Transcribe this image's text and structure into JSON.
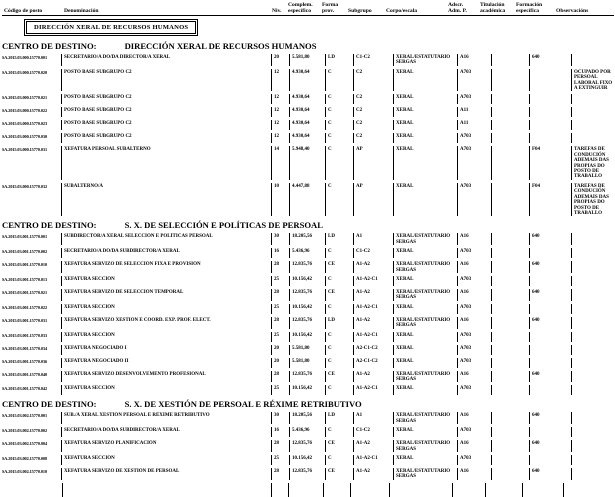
{
  "header": {
    "columns": [
      {
        "top": "",
        "bottom": "Código de posto"
      },
      {
        "top": "",
        "bottom": "Denominación"
      },
      {
        "top": "",
        "bottom": "Niv."
      },
      {
        "top": "Complem.",
        "bottom": "específico"
      },
      {
        "top": "Forma",
        "bottom": "prov."
      },
      {
        "top": "",
        "bottom": "Subgrupo"
      },
      {
        "top": "",
        "bottom": "Corpo/escala"
      },
      {
        "top": "Adscr.",
        "bottom": "Adm. P."
      },
      {
        "top": "Titulación",
        "bottom": "académica"
      },
      {
        "top": "Formación",
        "bottom": "específica"
      },
      {
        "top": "",
        "bottom": "Observacións"
      }
    ]
  },
  "org_box": "DIRECCIÓN XERAL DE RECURSOS HUMANOS",
  "sections": [
    {
      "centro_label": "CENTRO DE DESTINO:",
      "name": "DIRECCIÓN XERAL DE RECURSOS HUMANOS",
      "rows": [
        {
          "code": "SA.2015.03.000.15770.001",
          "den": "SECRETARIO/A DO/DA DIRECTOR/A XERAL",
          "niv": "20",
          "comp": "5.581,80",
          "forma": "LD",
          "sub": "C1-C2",
          "corpo": "XERAL/ESTATUTARIO SERGAS",
          "adscr": "A16",
          "tit": "",
          "form": "640",
          "obs": ""
        },
        {
          "code": "SA.2015.03.000.15770.020",
          "den": "POSTO BASE SUBGRUPO C2",
          "niv": "12",
          "comp": "4.930,64",
          "forma": "C",
          "sub": "C2",
          "corpo": "XERAL",
          "adscr": "A703",
          "tit": "",
          "form": "",
          "obs": "OCUPADO POR PERSOAL LABORAL FIXO A EXTINGUIR"
        },
        {
          "code": "SA.2015.03.000.15770.021",
          "den": "POSTO BASE SUBGRUPO C2",
          "niv": "12",
          "comp": "4.930,64",
          "forma": "C",
          "sub": "C2",
          "corpo": "XERAL",
          "adscr": "A703",
          "tit": "",
          "form": "",
          "obs": ""
        },
        {
          "code": "SA.2015.03.000.15770.022",
          "den": "POSTO BASE SUBGRUPO C2",
          "niv": "12",
          "comp": "4.930,64",
          "forma": "C",
          "sub": "C2",
          "corpo": "XERAL",
          "adscr": "A11",
          "tit": "",
          "form": "",
          "obs": ""
        },
        {
          "code": "SA.2015.03.000.15770.023",
          "den": "POSTO BASE SUBGRUPO C2",
          "niv": "12",
          "comp": "4.930,64",
          "forma": "C",
          "sub": "C2",
          "corpo": "XERAL",
          "adscr": "A11",
          "tit": "",
          "form": "",
          "obs": ""
        },
        {
          "code": "SA.2015.03.000.15770.030",
          "den": "POSTO BASE SUBGRUPO C2",
          "niv": "12",
          "comp": "4.930,64",
          "forma": "C",
          "sub": "C2",
          "corpo": "XERAL",
          "adscr": "A703",
          "tit": "",
          "form": "",
          "obs": ""
        },
        {
          "code": "SA.2015.03.000.15770.031",
          "den": "XEFATURA PERSOAL SUBALTERNO",
          "niv": "14",
          "comp": "5.948,40",
          "forma": "C",
          "sub": "AP",
          "corpo": "XERAL",
          "adscr": "A703",
          "tit": "",
          "form": "F04",
          "obs": "TAREFAS DE CONDUCIÓN ADEMAIS DAS PROPIAS DO POSTO DE TRABALLO"
        },
        {
          "code": "SA.2015.03.000.15770.032",
          "den": "SUBALTERNO/A",
          "niv": "10",
          "comp": "4.447,88",
          "forma": "C",
          "sub": "AP",
          "corpo": "XERAL",
          "adscr": "A703",
          "tit": "",
          "form": "F04",
          "obs": "TAREFAS DE CONDUCIÓN ADEMAIS DAS PROPIAS DO POSTO DE TRABALLO"
        }
      ]
    },
    {
      "centro_label": "CENTRO DE DESTINO:",
      "name": "S. X. DE SELECCIÓN E POLÍTICAS DE PERSOAL",
      "rows": [
        {
          "code": "SA.2015.03.001.15770.001",
          "den": "SUBDIRECTOR/A XERAL SELECCIÓN E POLÍTICAS PERSOAL",
          "niv": "30",
          "comp": "18.205,56",
          "forma": "LD",
          "sub": "A1",
          "corpo": "XERAL/ESTATUTARIO SERGAS",
          "adscr": "A16",
          "tit": "",
          "form": "640",
          "obs": ""
        },
        {
          "code": "SA.2015.03.001.15770.002",
          "den": "SECRETARIO/A DO/DA SUBDIRECTOR/A XERAL",
          "niv": "16",
          "comp": "5.436,96",
          "forma": "C",
          "sub": "C1-C2",
          "corpo": "XERAL",
          "adscr": "A703",
          "tit": "",
          "form": "",
          "obs": ""
        },
        {
          "code": "SA.2015.03.001.15770.010",
          "den": "XEFATURA SERVIZO DE SELECCIÓN FIXA E PROVISIÓN",
          "niv": "28",
          "comp": "12.835,76",
          "forma": "CE",
          "sub": "A1-A2",
          "corpo": "XERAL/ESTATUTARIO SERGAS",
          "adscr": "A16",
          "tit": "",
          "form": "640",
          "obs": ""
        },
        {
          "code": "SA.2015.03.001.15770.013",
          "den": "XEFATURA SECCIÓN",
          "niv": "25",
          "comp": "10.156,42",
          "forma": "C",
          "sub": "A1-A2-C1",
          "corpo": "XERAL",
          "adscr": "A703",
          "tit": "",
          "form": "",
          "obs": ""
        },
        {
          "code": "SA.2015.03.001.15770.021",
          "den": "XEFATURA SERVIZO DE SELECCIÓN TEMPORAL",
          "niv": "28",
          "comp": "12.835,76",
          "forma": "CE",
          "sub": "A1-A2",
          "corpo": "XERAL/ESTATUTARIO SERGAS",
          "adscr": "A16",
          "tit": "",
          "form": "640",
          "obs": ""
        },
        {
          "code": "SA.2015.03.001.15770.022",
          "den": "XEFATURA SECCIÓN",
          "niv": "25",
          "comp": "10.156,42",
          "forma": "C",
          "sub": "A1-A2-C1",
          "corpo": "XERAL",
          "adscr": "A703",
          "tit": "",
          "form": "",
          "obs": ""
        },
        {
          "code": "SA.2015.03.001.15770.031",
          "den": "XEFATURA SERVIZO XESTIÓN E COORD. EXP. PROF. ELECT.",
          "niv": "28",
          "comp": "12.835,76",
          "forma": "LD",
          "sub": "A1-A2",
          "corpo": "XERAL/ESTATUTARIO SERGAS",
          "adscr": "A16",
          "tit": "",
          "form": "640",
          "obs": ""
        },
        {
          "code": "SA.2015.03.001.15770.033",
          "den": "XEFATURA SECCIÓN",
          "niv": "25",
          "comp": "10.156,42",
          "forma": "C",
          "sub": "A1-A2-C1",
          "corpo": "XERAL",
          "adscr": "A703",
          "tit": "",
          "form": "",
          "obs": ""
        },
        {
          "code": "SA.2015.03.001.15770.034",
          "den": "XEFATURA NEGOCIADO I",
          "niv": "20",
          "comp": "5.581,80",
          "forma": "C",
          "sub": "A2-C1-C2",
          "corpo": "XERAL",
          "adscr": "A703",
          "tit": "",
          "form": "",
          "obs": ""
        },
        {
          "code": "SA.2015.03.001.15770.036",
          "den": "XEFATURA NEGOCIADO II",
          "niv": "20",
          "comp": "5.581,80",
          "forma": "C",
          "sub": "A2-C1-C2",
          "corpo": "XERAL",
          "adscr": "A703",
          "tit": "",
          "form": "",
          "obs": ""
        },
        {
          "code": "SA.2015.03.001.15770.040",
          "den": "XEFATURA SERVIZO DESENVOLVEMENTO PROFESIONAL",
          "niv": "28",
          "comp": "12.835,76",
          "forma": "CE",
          "sub": "A1-A2",
          "corpo": "XERAL/ESTATUTARIO SERGAS",
          "adscr": "A16",
          "tit": "",
          "form": "640",
          "obs": ""
        },
        {
          "code": "SA.2015.03.001.15770.042",
          "den": "XEFATURA SECCIÓN",
          "niv": "25",
          "comp": "10.156,42",
          "forma": "C",
          "sub": "A1-A2-C1",
          "corpo": "XERAL",
          "adscr": "A703",
          "tit": "",
          "form": "",
          "obs": ""
        }
      ]
    },
    {
      "centro_label": "CENTRO DE DESTINO:",
      "name": "S. X. DE XESTIÓN DE PERSOAL E RÉXIME RETRIBUTIVO",
      "rows": [
        {
          "code": "SA.2015.03.002.15770.001",
          "den": "SUB./A XERAL XESTIÓN PERSOAL E RÉXIME RETRIBUTIVO",
          "niv": "30",
          "comp": "18.205,56",
          "forma": "LD",
          "sub": "A1",
          "corpo": "XERAL/ESTATUTARIO SERGAS",
          "adscr": "A16",
          "tit": "",
          "form": "640",
          "obs": ""
        },
        {
          "code": "SA.2015.03.002.15770.002",
          "den": "SECRETARIO/A DO/DA SUBDIRECTOR/A XERAL",
          "niv": "16",
          "comp": "5.436,96",
          "forma": "C",
          "sub": "C1-C2",
          "corpo": "XERAL",
          "adscr": "A703",
          "tit": "",
          "form": "",
          "obs": ""
        },
        {
          "code": "SA.2015.03.002.15770.004",
          "den": "XEFATURA SERVIZO PLANIFICACIÓN",
          "niv": "28",
          "comp": "12.835,76",
          "forma": "CE",
          "sub": "A1-A2",
          "corpo": "XERAL/ESTATUTARIO SERGAS",
          "adscr": "A16",
          "tit": "",
          "form": "640",
          "obs": ""
        },
        {
          "code": "SA.2015.03.002.15770.008",
          "den": "XEFATURA SECCIÓN",
          "niv": "25",
          "comp": "10.156,42",
          "forma": "C",
          "sub": "A1-A2-C1",
          "corpo": "XERAL",
          "adscr": "A703",
          "tit": "",
          "form": "",
          "obs": ""
        },
        {
          "code": "SA.2015.03.002.15770.010",
          "den": "XEFATURA SERVIZO DE XESTIÓN DE PERSOAL",
          "niv": "28",
          "comp": "12.835,76",
          "forma": "CE",
          "sub": "A1-A2",
          "corpo": "XERAL/ESTATUTARIO SERGAS",
          "adscr": "A16",
          "tit": "",
          "form": "640",
          "obs": ""
        }
      ]
    }
  ]
}
